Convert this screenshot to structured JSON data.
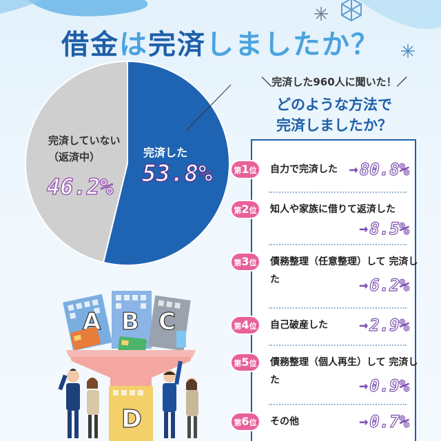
{
  "title": {
    "part1": "借金",
    "part2": "は",
    "part3": "完済",
    "part4": "しましたか？"
  },
  "chart_data": {
    "type": "pie",
    "title": "借金は完済しましたか？",
    "slices": [
      {
        "label": "完済した",
        "value": 53.8,
        "color": "#1f63b3"
      },
      {
        "label": "完済していない（返済中）",
        "value": 46.2,
        "color": "#cfcfcf"
      }
    ]
  },
  "pie_labels": {
    "paid_name": "完済した",
    "paid_pct": "53.8%",
    "unpaid_line1": "完済していない",
    "unpaid_line2": "（返済中）",
    "unpaid_pct": "46.2%"
  },
  "question": {
    "sub": "＼完済した960人に聞いた！／",
    "line1": "どのような方法で",
    "line2": "完済しましたか？"
  },
  "ranking_chart": {
    "type": "table",
    "items": [
      {
        "rank_prefix": "第",
        "rank": "1",
        "rank_suffix": "位",
        "label": "自力で完済した",
        "value": "80.8%"
      },
      {
        "rank_prefix": "第",
        "rank": "2",
        "rank_suffix": "位",
        "label": "知人や家族に借りて返済した",
        "value": "8.5%"
      },
      {
        "rank_prefix": "第",
        "rank": "3",
        "rank_suffix": "位",
        "label": "債務整理（任意整理）して 完済した",
        "value": "6.2%"
      },
      {
        "rank_prefix": "第",
        "rank": "4",
        "rank_suffix": "位",
        "label": "自己破産した",
        "value": "2.9%"
      },
      {
        "rank_prefix": "第",
        "rank": "5",
        "rank_suffix": "位",
        "label": "債務整理（個人再生）して 完済した",
        "value": "0.9%"
      },
      {
        "rank_prefix": "第",
        "rank": "6",
        "rank_suffix": "位",
        "label": "その他",
        "value": "0.7%"
      }
    ],
    "arrow": "→"
  },
  "illustration": {
    "letters": [
      "A",
      "B",
      "C",
      "D"
    ],
    "colors": {
      "funnel": "#f4a6a0",
      "building_blue": "#7aaee0",
      "building_grey": "#9aa3ad",
      "card_green": "#4bb36a",
      "card_orange": "#e87c3a"
    }
  }
}
